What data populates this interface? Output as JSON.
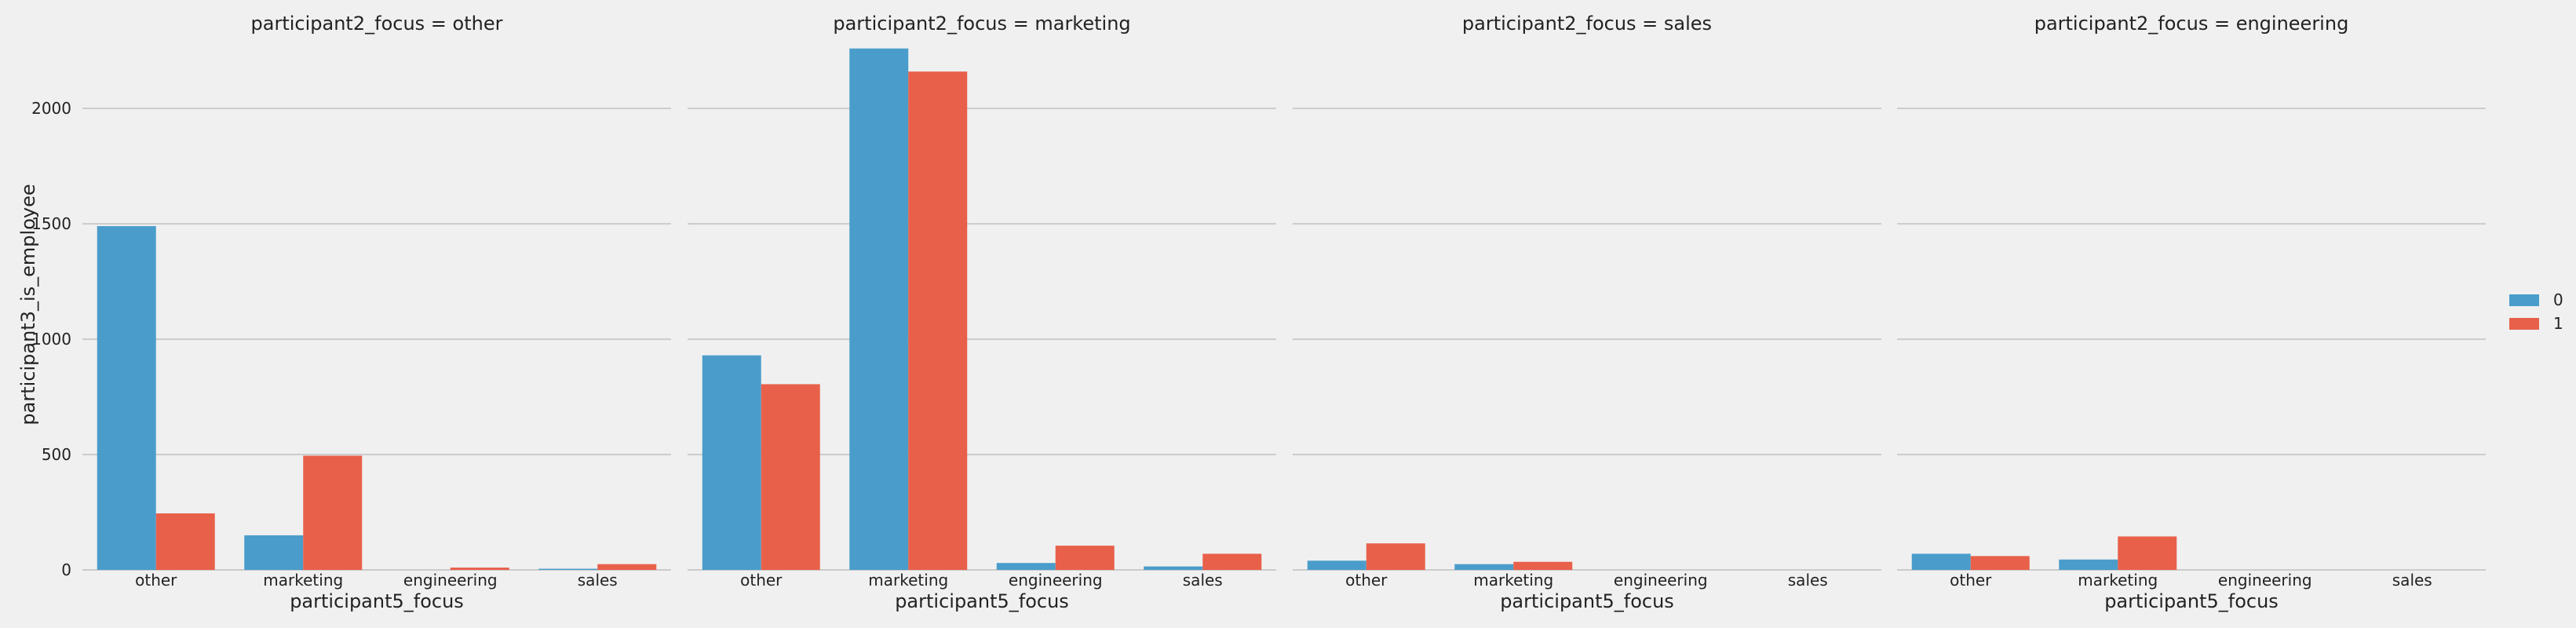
{
  "chart_data": {
    "type": "bar",
    "facet_variable": "participant2_focus",
    "facets": [
      {
        "title": "participant2_focus = other",
        "categories": [
          "other",
          "marketing",
          "engineering",
          "sales"
        ],
        "series": [
          {
            "name": "0",
            "values": [
              1490,
              150,
              0,
              5
            ]
          },
          {
            "name": "1",
            "values": [
              245,
              495,
              10,
              25
            ]
          }
        ]
      },
      {
        "title": "participant2_focus = marketing",
        "categories": [
          "other",
          "marketing",
          "engineering",
          "sales"
        ],
        "series": [
          {
            "name": "0",
            "values": [
              930,
              2260,
              30,
              15
            ]
          },
          {
            "name": "1",
            "values": [
              805,
              2160,
              105,
              70
            ]
          }
        ]
      },
      {
        "title": "participant2_focus = sales",
        "categories": [
          "other",
          "marketing",
          "engineering",
          "sales"
        ],
        "series": [
          {
            "name": "0",
            "values": [
              40,
              25,
              0,
              0
            ]
          },
          {
            "name": "1",
            "values": [
              115,
              35,
              0,
              0
            ]
          }
        ]
      },
      {
        "title": "participant2_focus = engineering",
        "categories": [
          "other",
          "marketing",
          "engineering",
          "sales"
        ],
        "series": [
          {
            "name": "0",
            "values": [
              70,
              45,
              0,
              0
            ]
          },
          {
            "name": "1",
            "values": [
              60,
              145,
              0,
              0
            ]
          }
        ]
      }
    ],
    "xlabel": "participant5_focus",
    "ylabel": "participant3_is_employee",
    "ylim": [
      0,
      2300
    ],
    "yticks": [
      0,
      500,
      1000,
      1500,
      2000
    ],
    "legend": {
      "entries": [
        "0",
        "1"
      ],
      "placement": "center-right"
    },
    "grid": true,
    "colors": {
      "series": [
        "#4a9dcb",
        "#e8604a"
      ],
      "background": "#f0f0f0",
      "grid": "#cbcbcb",
      "text": "#222222"
    }
  }
}
